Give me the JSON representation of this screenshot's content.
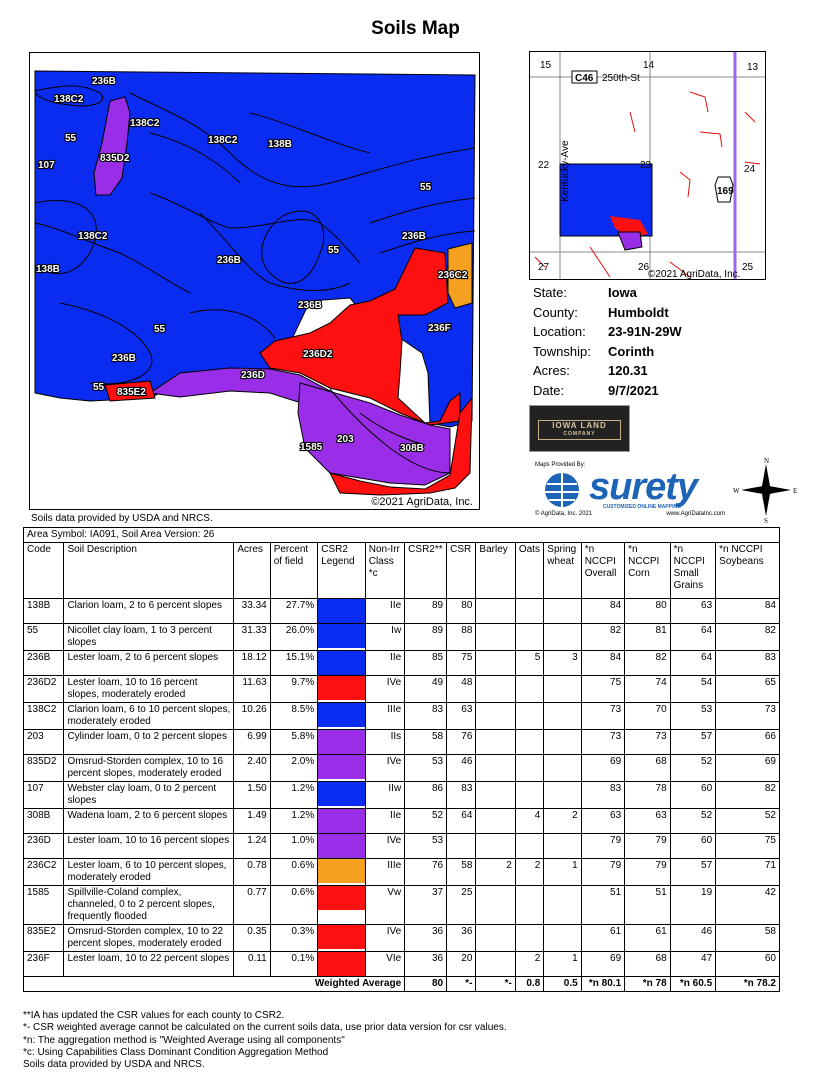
{
  "title": "Soils Map",
  "map": {
    "copyright": "©2021 AgriData, Inc.",
    "labels": [
      "236B",
      "138C2",
      "138C2",
      "55",
      "107",
      "835D2",
      "138C2",
      "138B",
      "55",
      "138C2",
      "236B",
      "55",
      "236B",
      "236C2",
      "138B",
      "236B",
      "236F",
      "55",
      "236D2",
      "236B",
      "236D",
      "55",
      "835E2",
      "1585",
      "203",
      "308B"
    ]
  },
  "inset": {
    "road_label": "C46",
    "street": "250th-St",
    "avenue": "Kentucky-Ave",
    "highway": "169",
    "sections": [
      "15",
      "14",
      "13",
      "22",
      "23",
      "24",
      "27",
      "26",
      "25"
    ],
    "copyright": "©2021 AgriData, Inc."
  },
  "info": [
    {
      "k": "State:",
      "v": "Iowa"
    },
    {
      "k": "County:",
      "v": "Humboldt"
    },
    {
      "k": "Location:",
      "v": "23-91N-29W"
    },
    {
      "k": "Township:",
      "v": "Corinth"
    },
    {
      "k": "Acres:",
      "v": "120.31"
    },
    {
      "k": "Date:",
      "v": "9/7/2021"
    }
  ],
  "logos": {
    "iowa_land": "IOWA LAND",
    "iowa_land_sub": "COMPANY",
    "maps_provided": "Maps Provided By:",
    "surety": "surety",
    "surety_tag": "CUSTOMIZED ONLINE MAPPING",
    "surety_copy": "© AgriData, Inc. 2021",
    "surety_url": "www.AgriDataInc.com",
    "compass": [
      "N",
      "E",
      "S",
      "W"
    ]
  },
  "note_top": "Soils data provided by USDA and NRCS.",
  "table": {
    "area": "Area Symbol: IA091, Soil Area Version: 26",
    "headers": [
      "Code",
      "Soil Description",
      "Acres",
      "Percent of field",
      "CSR2 Legend",
      "Non-Irr Class *c",
      "CSR2**",
      "CSR",
      "Barley",
      "Oats",
      "Spring wheat",
      "*n NCCPI Overall",
      "*n NCCPI Corn",
      "*n NCCPI Small Grains",
      "*n NCCPI Soybeans"
    ],
    "rows": [
      {
        "code": "138B",
        "desc": "Clarion loam, 2 to 6 percent slopes",
        "acres": "33.34",
        "pct": "27.7%",
        "color": "#0a2cf0",
        "cls": "IIe",
        "csr2": "89",
        "csr": "80",
        "barley": "",
        "oats": "",
        "wheat": "",
        "ov": "84",
        "corn": "80",
        "sg": "63",
        "soy": "84"
      },
      {
        "code": "55",
        "desc": "Nicollet clay loam, 1 to 3 percent slopes",
        "acres": "31.33",
        "pct": "26.0%",
        "color": "#0a2cf0",
        "cls": "Iw",
        "csr2": "89",
        "csr": "88",
        "barley": "",
        "oats": "",
        "wheat": "",
        "ov": "82",
        "corn": "81",
        "sg": "64",
        "soy": "82"
      },
      {
        "code": "236B",
        "desc": "Lester loam, 2 to 6 percent slopes",
        "acres": "18.12",
        "pct": "15.1%",
        "color": "#0a2cf0",
        "cls": "IIe",
        "csr2": "85",
        "csr": "75",
        "barley": "",
        "oats": "5",
        "wheat": "3",
        "ov": "84",
        "corn": "82",
        "sg": "64",
        "soy": "83"
      },
      {
        "code": "236D2",
        "desc": "Lester loam, 10 to 16 percent slopes, moderately eroded",
        "acres": "11.63",
        "pct": "9.7%",
        "color": "#ff1010",
        "cls": "IVe",
        "csr2": "49",
        "csr": "48",
        "barley": "",
        "oats": "",
        "wheat": "",
        "ov": "75",
        "corn": "74",
        "sg": "54",
        "soy": "65"
      },
      {
        "code": "138C2",
        "desc": "Clarion loam, 6 to 10 percent slopes, moderately eroded",
        "acres": "10.26",
        "pct": "8.5%",
        "color": "#0a2cf0",
        "cls": "IIIe",
        "csr2": "83",
        "csr": "63",
        "barley": "",
        "oats": "",
        "wheat": "",
        "ov": "73",
        "corn": "70",
        "sg": "53",
        "soy": "73"
      },
      {
        "code": "203",
        "desc": "Cylinder loam, 0 to 2 percent slopes",
        "acres": "6.99",
        "pct": "5.8%",
        "color": "#9a2ee8",
        "cls": "IIs",
        "csr2": "58",
        "csr": "76",
        "barley": "",
        "oats": "",
        "wheat": "",
        "ov": "73",
        "corn": "73",
        "sg": "57",
        "soy": "66"
      },
      {
        "code": "835D2",
        "desc": "Omsrud-Storden complex, 10 to 16 percent slopes, moderately eroded",
        "acres": "2.40",
        "pct": "2.0%",
        "color": "#9a2ee8",
        "cls": "IVe",
        "csr2": "53",
        "csr": "46",
        "barley": "",
        "oats": "",
        "wheat": "",
        "ov": "69",
        "corn": "68",
        "sg": "52",
        "soy": "69"
      },
      {
        "code": "107",
        "desc": "Webster clay loam, 0 to 2 percent slopes",
        "acres": "1.50",
        "pct": "1.2%",
        "color": "#0a2cf0",
        "cls": "IIw",
        "csr2": "86",
        "csr": "83",
        "barley": "",
        "oats": "",
        "wheat": "",
        "ov": "83",
        "corn": "78",
        "sg": "60",
        "soy": "82"
      },
      {
        "code": "308B",
        "desc": "Wadena loam, 2 to 6 percent slopes",
        "acres": "1.49",
        "pct": "1.2%",
        "color": "#9a2ee8",
        "cls": "IIe",
        "csr2": "52",
        "csr": "64",
        "barley": "",
        "oats": "4",
        "wheat": "2",
        "ov": "63",
        "corn": "63",
        "sg": "52",
        "soy": "52"
      },
      {
        "code": "236D",
        "desc": "Lester loam, 10 to 16 percent slopes",
        "acres": "1.24",
        "pct": "1.0%",
        "color": "#9a2ee8",
        "cls": "IVe",
        "csr2": "53",
        "csr": "",
        "barley": "",
        "oats": "",
        "wheat": "",
        "ov": "79",
        "corn": "79",
        "sg": "60",
        "soy": "75"
      },
      {
        "code": "236C2",
        "desc": "Lester loam, 6 to 10 percent slopes, moderately eroded",
        "acres": "0.78",
        "pct": "0.6%",
        "color": "#f5a020",
        "cls": "IIIe",
        "csr2": "76",
        "csr": "58",
        "barley": "2",
        "oats": "2",
        "wheat": "1",
        "ov": "79",
        "corn": "79",
        "sg": "57",
        "soy": "71"
      },
      {
        "code": "1585",
        "desc": "Spillville-Coland complex, channeled, 0 to 2 percent slopes, frequently flooded",
        "acres": "0.77",
        "pct": "0.6%",
        "color": "#ff1010",
        "cls": "Vw",
        "csr2": "37",
        "csr": "25",
        "barley": "",
        "oats": "",
        "wheat": "",
        "ov": "51",
        "corn": "51",
        "sg": "19",
        "soy": "42"
      },
      {
        "code": "835E2",
        "desc": "Omsrud-Storden complex, 10 to 22 percent slopes, moderately eroded",
        "acres": "0.35",
        "pct": "0.3%",
        "color": "#ff1010",
        "cls": "IVe",
        "csr2": "36",
        "csr": "36",
        "barley": "",
        "oats": "",
        "wheat": "",
        "ov": "61",
        "corn": "61",
        "sg": "46",
        "soy": "58"
      },
      {
        "code": "236F",
        "desc": "Lester loam, 10 to 22 percent slopes",
        "acres": "0.11",
        "pct": "0.1%",
        "color": "#ff1010",
        "cls": "VIe",
        "csr2": "36",
        "csr": "20",
        "barley": "",
        "oats": "2",
        "wheat": "1",
        "ov": "69",
        "corn": "68",
        "sg": "47",
        "soy": "60"
      }
    ],
    "weighted": {
      "label": "Weighted Average",
      "csr2": "80",
      "csr": "*-",
      "barley": "*-",
      "oats": "0.8",
      "wheat": "0.5",
      "ov": "*n 80.1",
      "corn": "*n 78",
      "sg": "*n 60.5",
      "soy": "*n 78.2"
    }
  },
  "notes": [
    "**IA has updated the CSR values for each county to CSR2.",
    "*- CSR weighted average cannot be calculated on the current soils data, use prior data version for csr values.",
    "*n: The aggregation method is \"Weighted Average using all components\"",
    "*c: Using Capabilities Class Dominant Condition Aggregation Method",
    "Soils data provided by USDA and NRCS."
  ]
}
